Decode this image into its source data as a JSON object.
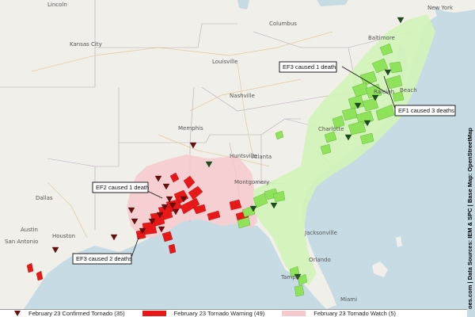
{
  "cities": [
    "Lincoln",
    "Kansas City",
    "Columbus",
    "Louisville",
    "Nashville",
    "Memphis",
    "Huntsville",
    "Atlanta",
    "Montgomery",
    "Charlotte",
    "Raleigh",
    "Baltimore",
    "Beach",
    "Jacksonville",
    "Dallas",
    "Austin",
    "Houston",
    "San Antonio",
    "Orlando",
    "Tampa",
    "Miami",
    "New York"
  ],
  "callouts": {
    "ef3_north": "EF3 caused 1 death",
    "ef1": "EF1 caused 3 deaths",
    "ef2": "EF2 caused 1 death",
    "ef3_south": "EF3 caused 2 deaths"
  },
  "credit": "oes.com | Data Sources: IEM & SPC | Base Map: OpenStreetMap",
  "legend": [
    {
      "label": "February 23 Confirmed Tornado (35)",
      "color": "#6a0e0e"
    },
    {
      "label": "February 23 Tornado Warning (49)",
      "color": "#e81818"
    },
    {
      "label": "February 23 Tornado Watch (5)",
      "color": "#f6c9cd"
    }
  ],
  "colors": {
    "land": "#f1efe9",
    "water": "#c6dbe4",
    "warning_red": "#e81818",
    "warning_green": "#8fe35a",
    "watch_pink": "#f6c9cd",
    "watch_green": "#d2f3b8",
    "confirmed": "#6a0e0e"
  }
}
